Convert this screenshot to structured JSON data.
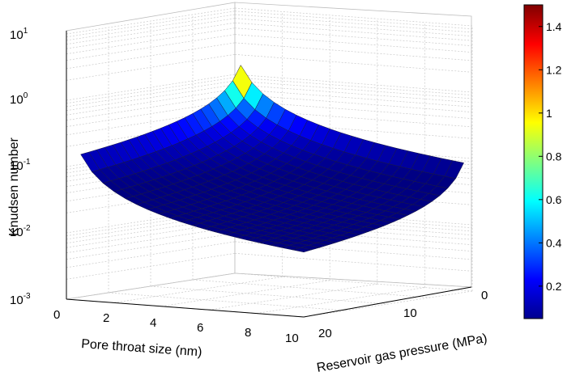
{
  "chart_data": {
    "type": "surface3d",
    "title": "",
    "zlabel": "Knudsen number",
    "xlabel": "Pore throat size (nm)",
    "ylabel": "Reservoir gas pressure (MPa)",
    "zscale": "log",
    "zlim": [
      0.001,
      10
    ],
    "xlim": [
      0,
      10
    ],
    "ylim": [
      0,
      20
    ],
    "z_ticks": [
      {
        "mantissa": "10",
        "exp": "-3"
      },
      {
        "mantissa": "10",
        "exp": "-2"
      },
      {
        "mantissa": "10",
        "exp": "-1"
      },
      {
        "mantissa": "10",
        "exp": "0"
      },
      {
        "mantissa": "10",
        "exp": "1"
      }
    ],
    "x_ticks": [
      "0",
      "2",
      "4",
      "6",
      "8",
      "10"
    ],
    "y_ticks": [
      "0",
      "10",
      "20"
    ],
    "colorbar": {
      "ticks": [
        "0.2",
        "0.4",
        "0.6",
        "0.8",
        "1",
        "1.2",
        "1.4"
      ],
      "range": [
        0.05,
        1.5
      ],
      "colormap": "jet"
    },
    "surface_samples": [
      {
        "pore_size_nm": 0.5,
        "pressure_MPa": 1,
        "knudsen": 1.5
      },
      {
        "pore_size_nm": 10,
        "pressure_MPa": 1,
        "knudsen": 0.15
      },
      {
        "pore_size_nm": 0.5,
        "pressure_MPa": 20,
        "knudsen": 0.07
      },
      {
        "pore_size_nm": 10,
        "pressure_MPa": 20,
        "knudsen": 0.004
      }
    ],
    "grid": true
  }
}
